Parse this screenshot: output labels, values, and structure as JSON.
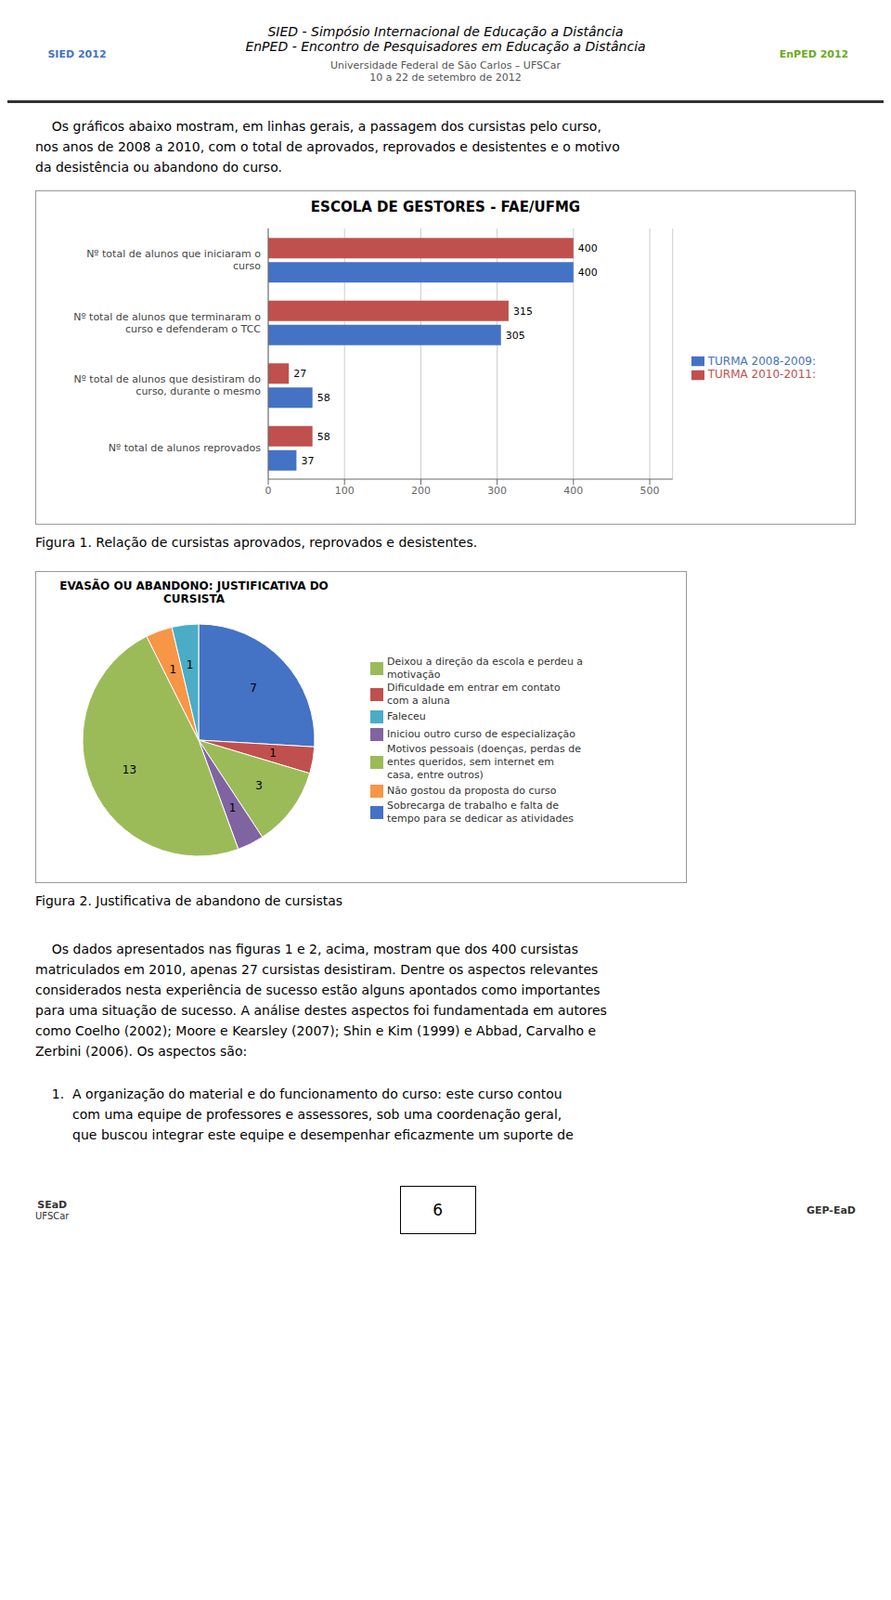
{
  "chart_data": [
    {
      "type": "bar",
      "title": "ESCOLA DE GESTORES - FAE/UFMG",
      "orientation": "horizontal",
      "categories": [
        "Nº total de alunos reprovados",
        "Nº total de alunos que desistiram do\ncurso, durante o mesmo",
        "Nº total de alunos que terminaram o\ncurso e defenderam o TCC",
        "Nº total de alunos que iniciaram o\ncurso"
      ],
      "series": [
        {
          "name": "TURMA 2010-2011:",
          "color": "#c0504d",
          "values": [
            58,
            27,
            315,
            400
          ]
        },
        {
          "name": "TURMA 2008-2009:",
          "color": "#4472c4",
          "values": [
            37,
            58,
            305,
            400
          ]
        }
      ],
      "xlim": [
        0,
        530
      ],
      "xticks": [
        0,
        100,
        200,
        300,
        400,
        500
      ],
      "grid": true,
      "data_labels": true,
      "legend": "right",
      "annotations": [
        "SIED 2012",
        "SIED - Simpósio Internacional de Educação a Distância",
        "EnPED - Encontro de Pesquisadores em Educação a Distância",
        "Universidade Federal de São Carlos – UFSCar",
        "10 a 22 de setembro de 2012",
        "EnPED 2012",
        "    Os gráficos abaixo mostram, em linhas gerais, a passagem dos cursistas pelo curso,\nnos anos de 2008 a 2010, com o total de aprovados, reprovados e desistentes e o motivo\nda desistência ou abandono do curso.",
        "Figura 1. Relação de cursistas aprovados, reprovados e desistentes."
      ]
    },
    {
      "type": "pie",
      "title": "EVASÃO OU ABANDONO: JUSTIFICATIVA DO\nCURSISTA",
      "categories": [
        "Sobrecarga de trabalho e falta de\ntempo para se dedicar as atividades",
        "Dificuldade em entrar em contato\ncom a aluna",
        "Motivos pessoais (doenças, perdas de\nentes queridos, sem internet em\ncasa, entre outros)",
        "Iniciou outro curso de especialização",
        "Deixou a direção da escola e perdeu a\nmotivação",
        "Não gostou da proposta do curso",
        "Faleceu"
      ],
      "values": [
        7,
        1,
        3,
        1,
        13,
        1,
        1
      ],
      "colors": [
        "#4472c4",
        "#c0504d",
        "#9bbb59",
        "#8064a2",
        "#9bbb59",
        "#f79646",
        "#4bacc6"
      ],
      "data_labels": true,
      "legend": "right",
      "annotations": [
        "Figura 2. Justificativa de abandono de cursistas",
        "    Os dados apresentados nas figuras 1 e 2, acima, mostram que dos 400 cursistas\nmatriculados em 2010, apenas 27 cursistas desistiram. Dentre os aspectos relevantes\nconsiderados nesta experiência de sucesso estão alguns apontados como importantes\npara uma situação de sucesso. A análise destes aspectos foi fundamentada em autores\ncomo Coelho (2002); Moore e Kearsley (2007); Shin e Kim (1999) e Abbad, Carvalho e\nZerbini (2006). Os aspectos são:",
        "    1.  A organização do material e do funcionamento do curso: este curso contou\n         com uma equipe de professores e assessores, sob uma coordenação geral,\n         que buscou integrar este equipe e desempenhar eficazmente um suporte de",
        "SEaD",
        "UFSCar",
        "6",
        "GEP-EaD"
      ]
    }
  ]
}
